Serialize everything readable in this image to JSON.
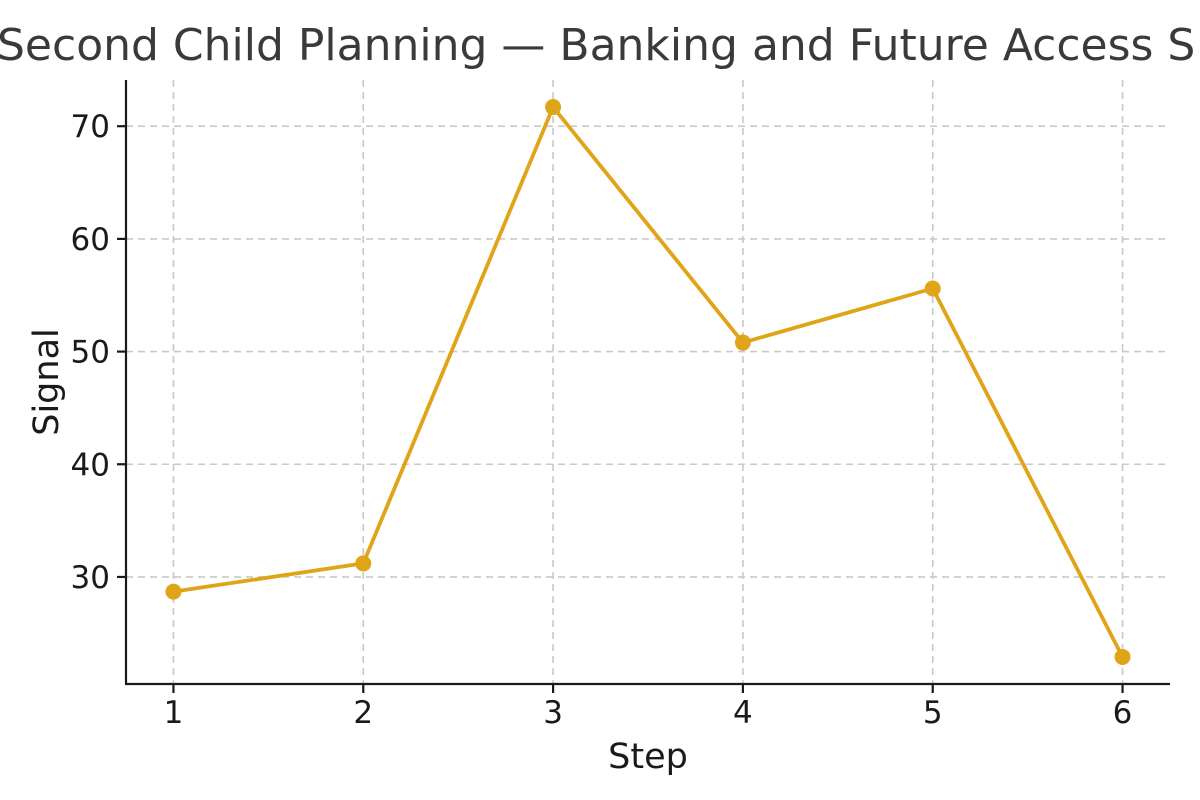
{
  "title": "Second Child Planning — Banking and Future Access S",
  "chart_data": {
    "type": "line",
    "title": "Second Child Planning — Banking and Future Access S",
    "xlabel": "Step",
    "ylabel": "Signal",
    "x": [
      1,
      2,
      3,
      4,
      5,
      6
    ],
    "series": [
      {
        "name": "Signal",
        "values": [
          28.7,
          31.2,
          71.7,
          50.8,
          55.6,
          22.9
        ]
      }
    ],
    "xticks": [
      1,
      2,
      3,
      4,
      5,
      6
    ],
    "yticks": [
      30,
      40,
      50,
      60,
      70
    ],
    "xlim": [
      0.75,
      6.25
    ],
    "ylim": [
      20.5,
      74.1
    ],
    "grid": true,
    "legend": "none",
    "colors": {
      "line": "#E0A419",
      "marker": "#E0A419",
      "grid": "#c9c9c9",
      "axis": "#1a1a1a",
      "tick_label": "#1a1a1a",
      "title": "#3a3a3a",
      "background": "#ffffff"
    }
  }
}
